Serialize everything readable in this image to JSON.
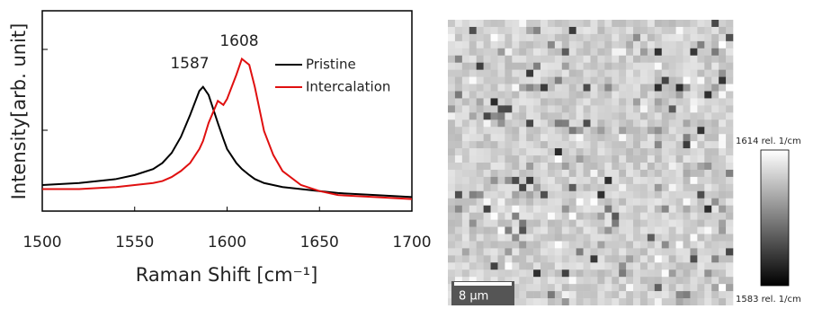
{
  "chart_data": {
    "type": "line",
    "x_label": "Raman Shift [cm⁻¹]",
    "y_label": "Intensity[arb. unit]",
    "x": [
      1500,
      1520,
      1540,
      1550,
      1560,
      1565,
      1570,
      1575,
      1580,
      1585,
      1587,
      1590,
      1595,
      1598,
      1600,
      1605,
      1608,
      1612,
      1615,
      1620,
      1625,
      1630,
      1640,
      1650,
      1660,
      1680,
      1700
    ],
    "series": [
      {
        "name": "Pristine",
        "color": "#000000",
        "values": [
          0.13,
          0.14,
          0.16,
          0.18,
          0.21,
          0.24,
          0.29,
          0.37,
          0.48,
          0.6,
          0.62,
          0.58,
          0.44,
          0.36,
          0.31,
          0.24,
          0.21,
          0.18,
          0.16,
          0.14,
          0.13,
          0.12,
          0.11,
          0.1,
          0.09,
          0.08,
          0.07
        ]
      },
      {
        "name": "Intercalation",
        "color": "#e01010",
        "values": [
          0.11,
          0.11,
          0.12,
          0.13,
          0.14,
          0.15,
          0.17,
          0.2,
          0.24,
          0.31,
          0.35,
          0.44,
          0.55,
          0.53,
          0.56,
          0.68,
          0.76,
          0.73,
          0.62,
          0.4,
          0.28,
          0.2,
          0.13,
          0.1,
          0.08,
          0.07,
          0.06
        ]
      }
    ],
    "annotations": [
      "1587",
      "1608"
    ],
    "xlim": [
      1500,
      1700
    ],
    "xticks": [
      1500,
      1550,
      1600,
      1650,
      1700
    ],
    "ylim": [
      0,
      1
    ],
    "legend": "upper right"
  },
  "map": {
    "scale_bar": "8 µm",
    "colorbar": {
      "max_label": "1614 rel. 1/cm",
      "min_label": "1583 rel. 1/cm"
    }
  }
}
